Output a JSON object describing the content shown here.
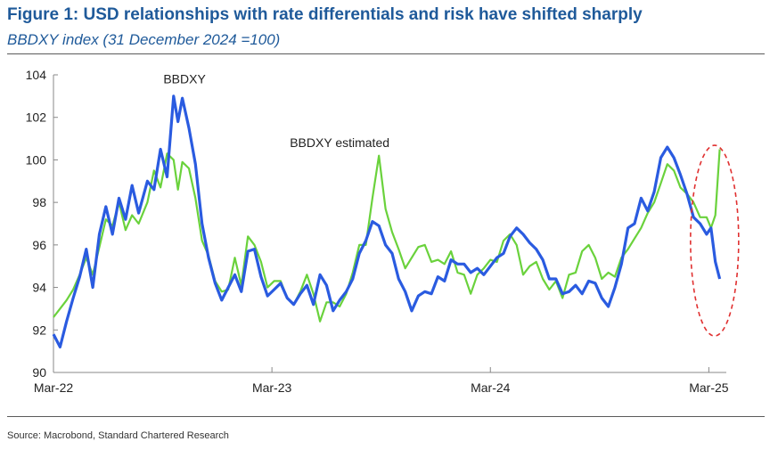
{
  "header": {
    "title": "Figure 1: USD relationships with rate differentials and risk have shifted sharply",
    "subtitle": "BBDXY index (31 December 2024 =100)"
  },
  "footer": {
    "source": "Source: Macrobond, Standard Chartered Research"
  },
  "colors": {
    "actual": "#2a5be0",
    "estimated": "#6ad23c",
    "highlight": "#e03030",
    "axis": "#888888",
    "text": "#222222"
  },
  "chart_data": {
    "type": "line",
    "title": "BBDXY index (31 December 2024 =100)",
    "xlabel": "",
    "ylabel": "",
    "ylim": [
      90,
      104
    ],
    "yticks": [
      "90",
      "92",
      "94",
      "96",
      "98",
      "100",
      "102",
      "104"
    ],
    "xticks": [
      {
        "label": "Mar-22",
        "x": 2022.17
      },
      {
        "label": "Mar-23",
        "x": 2023.17
      },
      {
        "label": "Mar-24",
        "x": 2024.17
      },
      {
        "label": "Mar-25",
        "x": 2025.17
      }
    ],
    "xlim": [
      2022.17,
      2025.25
    ],
    "annotations": [
      {
        "text": "BBDXY",
        "x": 2022.77,
        "y": 103.6
      },
      {
        "text": "BBDXY estimated",
        "x": 2023.48,
        "y": 100.6
      }
    ],
    "highlight": {
      "shape": "ellipse",
      "x": 2025.18,
      "y": 96.2
    },
    "series": [
      {
        "name": "BBDXY",
        "x": [
          2022.17,
          2022.2,
          2022.23,
          2022.26,
          2022.29,
          2022.32,
          2022.35,
          2022.38,
          2022.41,
          2022.44,
          2022.47,
          2022.5,
          2022.53,
          2022.56,
          2022.6,
          2022.63,
          2022.66,
          2022.69,
          2022.72,
          2022.74,
          2022.76,
          2022.79,
          2022.82,
          2022.85,
          2022.88,
          2022.91,
          2022.94,
          2022.97,
          2023.0,
          2023.03,
          2023.06,
          2023.09,
          2023.12,
          2023.15,
          2023.18,
          2023.21,
          2023.24,
          2023.27,
          2023.3,
          2023.33,
          2023.36,
          2023.39,
          2023.42,
          2023.45,
          2023.48,
          2023.51,
          2023.54,
          2023.57,
          2023.6,
          2023.63,
          2023.66,
          2023.69,
          2023.72,
          2023.75,
          2023.78,
          2023.81,
          2023.84,
          2023.87,
          2023.9,
          2023.93,
          2023.96,
          2023.99,
          2024.02,
          2024.05,
          2024.08,
          2024.11,
          2024.14,
          2024.17,
          2024.2,
          2024.23,
          2024.26,
          2024.29,
          2024.32,
          2024.35,
          2024.38,
          2024.41,
          2024.44,
          2024.47,
          2024.5,
          2024.53,
          2024.56,
          2024.59,
          2024.62,
          2024.65,
          2024.68,
          2024.71,
          2024.74,
          2024.77,
          2024.8,
          2024.83,
          2024.86,
          2024.89,
          2024.92,
          2024.95,
          2024.98,
          2025.01,
          2025.04,
          2025.07,
          2025.1,
          2025.13,
          2025.16,
          2025.18,
          2025.2,
          2025.22
        ],
        "values": [
          91.8,
          91.2,
          92.4,
          93.5,
          94.5,
          95.8,
          94.0,
          96.5,
          97.8,
          96.5,
          98.2,
          97.2,
          98.8,
          97.5,
          99.0,
          98.6,
          100.5,
          99.2,
          103.0,
          101.8,
          102.9,
          101.5,
          99.8,
          97.0,
          95.4,
          94.2,
          93.4,
          94.0,
          94.6,
          93.8,
          95.7,
          95.8,
          94.5,
          93.6,
          93.9,
          94.2,
          93.5,
          93.2,
          93.7,
          94.1,
          93.2,
          94.6,
          94.1,
          92.9,
          93.4,
          93.8,
          94.4,
          95.6,
          96.2,
          97.1,
          96.9,
          96.0,
          95.6,
          94.4,
          93.8,
          92.9,
          93.6,
          93.8,
          93.7,
          94.5,
          94.3,
          95.3,
          95.1,
          95.1,
          94.7,
          94.9,
          94.6,
          95.0,
          95.4,
          95.6,
          96.4,
          96.8,
          96.5,
          96.1,
          95.8,
          95.3,
          94.4,
          94.4,
          93.7,
          93.8,
          94.1,
          93.7,
          94.3,
          94.2,
          93.5,
          93.1,
          94.0,
          95.1,
          96.8,
          97.0,
          98.2,
          97.6,
          98.5,
          100.1,
          100.6,
          100.1,
          99.3,
          98.4,
          97.3,
          97.0,
          96.5,
          96.8,
          95.2,
          94.4
        ]
      },
      {
        "name": "BBDXY estimated",
        "x": [
          2022.17,
          2022.2,
          2022.23,
          2022.26,
          2022.29,
          2022.32,
          2022.35,
          2022.38,
          2022.41,
          2022.44,
          2022.47,
          2022.5,
          2022.53,
          2022.56,
          2022.6,
          2022.63,
          2022.66,
          2022.69,
          2022.72,
          2022.74,
          2022.76,
          2022.79,
          2022.82,
          2022.85,
          2022.88,
          2022.91,
          2022.94,
          2022.97,
          2023.0,
          2023.03,
          2023.06,
          2023.09,
          2023.12,
          2023.15,
          2023.18,
          2023.21,
          2023.24,
          2023.27,
          2023.3,
          2023.33,
          2023.36,
          2023.39,
          2023.42,
          2023.45,
          2023.48,
          2023.51,
          2023.54,
          2023.57,
          2023.6,
          2023.63,
          2023.66,
          2023.69,
          2023.72,
          2023.75,
          2023.78,
          2023.81,
          2023.84,
          2023.87,
          2023.9,
          2023.93,
          2023.96,
          2023.99,
          2024.02,
          2024.05,
          2024.08,
          2024.11,
          2024.14,
          2024.17,
          2024.2,
          2024.23,
          2024.26,
          2024.29,
          2024.32,
          2024.35,
          2024.38,
          2024.41,
          2024.44,
          2024.47,
          2024.5,
          2024.53,
          2024.56,
          2024.59,
          2024.62,
          2024.65,
          2024.68,
          2024.71,
          2024.74,
          2024.77,
          2024.8,
          2024.83,
          2024.86,
          2024.89,
          2024.92,
          2024.95,
          2024.98,
          2025.01,
          2025.04,
          2025.07,
          2025.1,
          2025.13,
          2025.16,
          2025.18,
          2025.2,
          2025.22
        ],
        "values": [
          92.6,
          93.0,
          93.4,
          93.9,
          94.6,
          95.4,
          94.6,
          95.9,
          97.2,
          96.9,
          98.0,
          96.7,
          97.4,
          97.0,
          98.0,
          99.5,
          98.7,
          100.3,
          100.0,
          98.6,
          99.9,
          99.6,
          98.2,
          96.2,
          95.5,
          94.3,
          93.8,
          93.9,
          95.4,
          94.1,
          96.4,
          96.0,
          95.2,
          94.0,
          94.3,
          94.3,
          93.5,
          93.2,
          93.8,
          94.6,
          93.7,
          92.4,
          93.3,
          93.3,
          93.1,
          93.7,
          94.7,
          96.0,
          96.0,
          98.2,
          100.2,
          97.7,
          96.6,
          95.8,
          94.9,
          95.4,
          95.9,
          96.0,
          95.2,
          95.3,
          95.1,
          95.7,
          94.7,
          94.6,
          93.7,
          94.6,
          94.9,
          95.3,
          95.2,
          96.2,
          96.5,
          96.0,
          94.6,
          95.0,
          95.2,
          94.4,
          93.9,
          94.3,
          93.5,
          94.6,
          94.7,
          95.7,
          96.0,
          95.4,
          94.4,
          94.7,
          94.5,
          95.4,
          95.8,
          96.3,
          96.8,
          97.5,
          98.0,
          98.9,
          99.8,
          99.5,
          98.7,
          98.4,
          98.0,
          97.3,
          97.3,
          96.8,
          97.4,
          100.5
        ]
      }
    ]
  }
}
